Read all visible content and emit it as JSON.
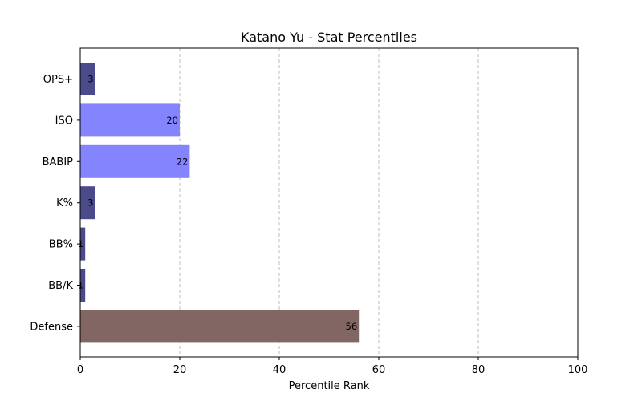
{
  "chart_data": {
    "type": "bar",
    "orientation": "horizontal",
    "title": "Katano Yu - Stat Percentiles",
    "xlabel": "Percentile Rank",
    "ylabel": "",
    "xlim": [
      0,
      100
    ],
    "xticks": [
      0,
      20,
      40,
      60,
      80,
      100
    ],
    "grid": "x-dashed",
    "categories": [
      "OPS+",
      "ISO",
      "BABIP",
      "K%",
      "BB%",
      "BB/K",
      "Defense"
    ],
    "values": [
      3,
      20,
      22,
      3,
      1,
      1,
      56
    ],
    "data_labels": [
      "3",
      "20",
      "22",
      "3",
      "1",
      "1",
      "56"
    ],
    "colors": [
      "#4b4b8c",
      "#8484ff",
      "#8484ff",
      "#4b4b8c",
      "#4b4b8c",
      "#4b4b8c",
      "#826663"
    ]
  }
}
